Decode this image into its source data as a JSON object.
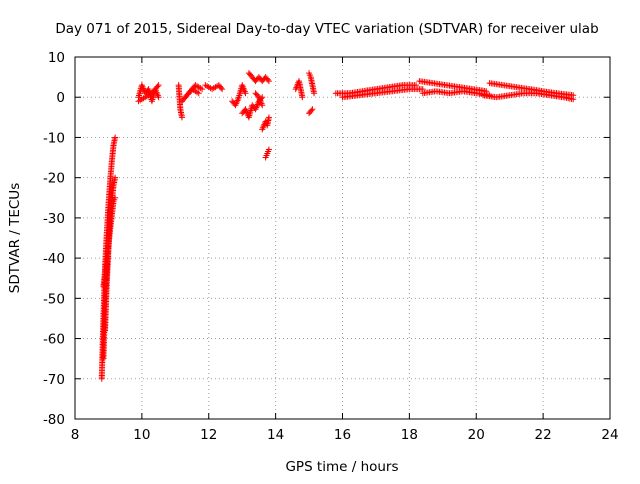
{
  "chart_data": {
    "type": "scatter",
    "title": "Day 071 of 2015, Sidereal Day-to-day VTEC variation (SDTVAR) for receiver ulab",
    "xlabel": "GPS time / hours",
    "ylabel": "SDTVAR / TECUs",
    "xlim": [
      8,
      24
    ],
    "ylim": [
      -80,
      10
    ],
    "x_ticks": [
      8,
      10,
      12,
      14,
      16,
      18,
      20,
      22,
      24
    ],
    "y_ticks": [
      10,
      0,
      -10,
      -20,
      -30,
      -40,
      -50,
      -60,
      -70,
      -80
    ],
    "grid": true,
    "marker": "+",
    "color": "#ff0000",
    "series": [
      {
        "name": "SDTVAR",
        "segments": [
          {
            "x": [
              8.8,
              8.85,
              8.9,
              8.95,
              9.0,
              9.05,
              9.1,
              9.15,
              9.2
            ],
            "y": [
              -70,
              -55,
              -42,
              -34,
              -27,
              -21,
              -16,
              -12,
              -10
            ]
          },
          {
            "x": [
              8.9,
              8.95,
              9.0,
              9.05,
              9.1,
              9.15,
              9.2
            ],
            "y": [
              -58,
              -46,
              -38,
              -31,
              -26,
              -22,
              -20
            ]
          },
          {
            "x": [
              8.85,
              8.9,
              8.95,
              9.0,
              9.05
            ],
            "y": [
              -65,
              -52,
              -43,
              -36,
              -28
            ]
          },
          {
            "x": [
              8.85,
              8.95,
              9.05,
              9.15,
              9.2
            ],
            "y": [
              -47,
              -40,
              -33,
              -26,
              -25
            ]
          },
          {
            "x": [
              9.9,
              10.0,
              10.1,
              10.2,
              10.3,
              10.4,
              10.5
            ],
            "y": [
              0,
              3,
              1,
              2,
              -1,
              2,
              0
            ]
          },
          {
            "x": [
              9.9,
              10.1,
              10.3,
              10.5
            ],
            "y": [
              -1,
              0,
              1,
              3
            ]
          },
          {
            "x": [
              11.1,
              11.15,
              11.2
            ],
            "y": [
              3,
              -3,
              -5
            ]
          },
          {
            "x": [
              11.2,
              11.4,
              11.6,
              11.8
            ],
            "y": [
              -1,
              1,
              3,
              2
            ]
          },
          {
            "x": [
              11.3,
              11.5,
              11.7
            ],
            "y": [
              0,
              2,
              1
            ]
          },
          {
            "x": [
              11.9,
              12.1,
              12.3,
              12.4
            ],
            "y": [
              3,
              2,
              3,
              2
            ]
          },
          {
            "x": [
              12.7,
              12.8,
              12.9,
              13.0,
              13.1
            ],
            "y": [
              -1,
              -2,
              0,
              3,
              1
            ]
          },
          {
            "x": [
              13.0,
              13.1,
              13.2,
              13.3,
              13.4,
              13.5,
              13.6
            ],
            "y": [
              -4,
              -3,
              -5,
              -2,
              -3,
              -1,
              0
            ]
          },
          {
            "x": [
              13.2,
              13.3,
              13.4,
              13.5,
              13.6,
              13.7,
              13.8
            ],
            "y": [
              6,
              5,
              4,
              5,
              4,
              5,
              4
            ]
          },
          {
            "x": [
              13.4,
              13.5,
              13.6
            ],
            "y": [
              1,
              0,
              -2
            ]
          },
          {
            "x": [
              13.6,
              13.7,
              13.75,
              13.8
            ],
            "y": [
              -8,
              -6,
              -7,
              -5
            ]
          },
          {
            "x": [
              13.7,
              13.75,
              13.8
            ],
            "y": [
              -15,
              -14,
              -13
            ]
          },
          {
            "x": [
              14.6,
              14.7,
              14.8
            ],
            "y": [
              2,
              4,
              0
            ]
          },
          {
            "x": [
              15.0,
              15.05,
              15.1,
              15.15
            ],
            "y": [
              6,
              5,
              3,
              1
            ]
          },
          {
            "x": [
              15.0,
              15.1
            ],
            "y": [
              -4,
              -3
            ]
          },
          {
            "x": [
              15.8,
              16.2,
              16.6,
              17.0,
              17.4,
              17.8,
              18.2
            ],
            "y": [
              1,
              1,
              1.5,
              2,
              2.5,
              3,
              3
            ]
          },
          {
            "x": [
              16.0,
              16.5,
              17.0,
              17.5,
              18.0,
              18.4
            ],
            "y": [
              0,
              0.5,
              1,
              1.5,
              2,
              2
            ]
          },
          {
            "x": [
              18.3,
              18.7,
              19.1,
              19.5,
              19.9,
              20.3
            ],
            "y": [
              4,
              3.5,
              3,
              2.5,
              2,
              1.5
            ]
          },
          {
            "x": [
              18.4,
              18.8,
              19.2,
              19.6,
              20.0,
              20.4
            ],
            "y": [
              1,
              1.5,
              1,
              1.5,
              1,
              0.5
            ]
          },
          {
            "x": [
              20.4,
              20.8,
              21.2,
              21.6,
              22.0,
              22.4,
              22.9
            ],
            "y": [
              3.5,
              3,
              2.5,
              2,
              1.5,
              1,
              0.5
            ]
          },
          {
            "x": [
              20.2,
              20.6,
              21.0,
              21.4,
              21.8,
              22.2,
              22.6,
              22.9
            ],
            "y": [
              0.5,
              0,
              0.5,
              1,
              1,
              0.5,
              0,
              -0.5
            ]
          }
        ]
      }
    ]
  }
}
